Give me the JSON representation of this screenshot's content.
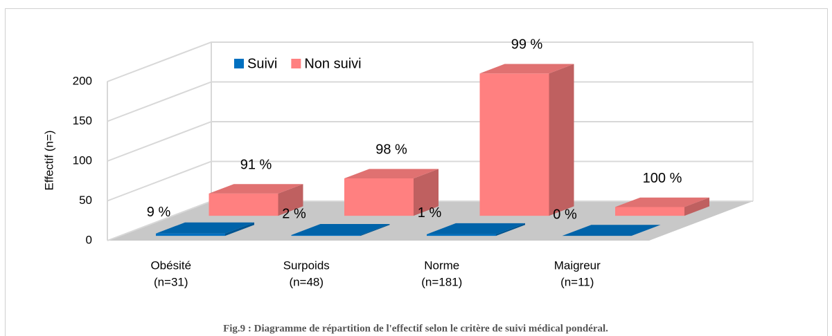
{
  "chart_data": {
    "type": "bar3d",
    "caption": "Fig.9 : Diagramme de répartition de l'effectif selon le critère de suivi médical pondéral.",
    "y_label": "Effectif (n=)",
    "categories": [
      [
        "Obésité",
        "(n=31)"
      ],
      [
        "Surpoids",
        "(n=48)"
      ],
      [
        "Norme",
        "(n=181)"
      ],
      [
        "Maigreur",
        "(n=11)"
      ]
    ],
    "series": [
      {
        "name": "Suivi",
        "color": "#0070c0",
        "values": [
          3,
          1,
          2,
          0
        ],
        "labels": [
          "9 %",
          "2 %",
          "1 %",
          "0 %"
        ]
      },
      {
        "name": "Non suivi",
        "color": "#ff8080",
        "values": [
          28,
          47,
          179,
          11
        ],
        "labels": [
          "91 %",
          "98 %",
          "99 %",
          "100 %"
        ]
      }
    ],
    "ylim": [
      0,
      200
    ],
    "yticks": [
      0,
      50,
      100,
      150,
      200
    ],
    "grid": true
  }
}
